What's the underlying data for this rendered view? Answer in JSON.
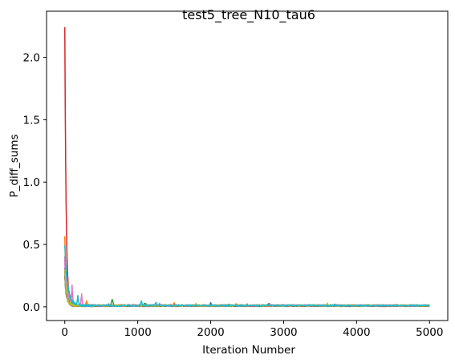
{
  "chart_data": {
    "type": "line",
    "title": "test5_tree_N10_tau6",
    "xlabel": "Iteration Number",
    "ylabel": "P_diff_sums",
    "xlim": [
      -250,
      5250
    ],
    "ylim": [
      -0.11,
      2.37
    ],
    "x_ticks": [
      0,
      1000,
      2000,
      3000,
      4000,
      5000
    ],
    "x_tick_labels": [
      "0",
      "1000",
      "2000",
      "3000",
      "4000",
      "5000"
    ],
    "y_ticks": [
      0.0,
      0.5,
      1.0,
      1.5,
      2.0
    ],
    "y_tick_labels": [
      "0.0",
      "0.5",
      "1.0",
      "1.5",
      "2.0"
    ],
    "grid": false,
    "legend": "none",
    "series": [
      {
        "color": "#1f77b4",
        "peak": 0.41,
        "tail": 0.008,
        "decay": 25,
        "bumps": [
          [
            600,
            0.02
          ],
          [
            2000,
            0.03
          ],
          [
            3700,
            0.015
          ]
        ]
      },
      {
        "color": "#ff7f0e",
        "peak": 0.54,
        "tail": 0.01,
        "decay": 20,
        "bumps": [
          [
            300,
            0.03
          ],
          [
            1500,
            0.02
          ],
          [
            2350,
            0.015
          ]
        ]
      },
      {
        "color": "#2ca02c",
        "peak": 0.28,
        "tail": 0.01,
        "decay": 30,
        "bumps": [
          [
            650,
            0.06
          ],
          [
            1100,
            0.025
          ],
          [
            2250,
            0.02
          ]
        ]
      },
      {
        "color": "#d62728",
        "peak": 2.26,
        "tail": 0.006,
        "decay": 18,
        "bumps": [
          [
            3000,
            0.01
          ]
        ]
      },
      {
        "color": "#9467bd",
        "peak": 0.3,
        "tail": 0.008,
        "decay": 28,
        "bumps": [
          [
            1300,
            0.02
          ]
        ]
      },
      {
        "color": "#8c564b",
        "peak": 0.25,
        "tail": 0.01,
        "decay": 30,
        "bumps": [
          [
            1450,
            0.015
          ],
          [
            2800,
            0.015
          ]
        ]
      },
      {
        "color": "#e377c2",
        "peak": 0.35,
        "tail": 0.012,
        "decay": 35,
        "bumps": [
          [
            100,
            0.13
          ],
          [
            230,
            0.08
          ]
        ]
      },
      {
        "color": "#7f7f7f",
        "peak": 0.22,
        "tail": 0.008,
        "decay": 26,
        "bumps": [
          [
            2500,
            0.012
          ]
        ]
      },
      {
        "color": "#bcbd22",
        "peak": 0.3,
        "tail": 0.01,
        "decay": 24,
        "bumps": [
          [
            1800,
            0.015
          ],
          [
            3600,
            0.02
          ]
        ]
      },
      {
        "color": "#17becf",
        "peak": 0.47,
        "tail": 0.01,
        "decay": 40,
        "bumps": [
          [
            180,
            0.07
          ],
          [
            1050,
            0.05
          ],
          [
            1250,
            0.03
          ]
        ]
      }
    ]
  }
}
